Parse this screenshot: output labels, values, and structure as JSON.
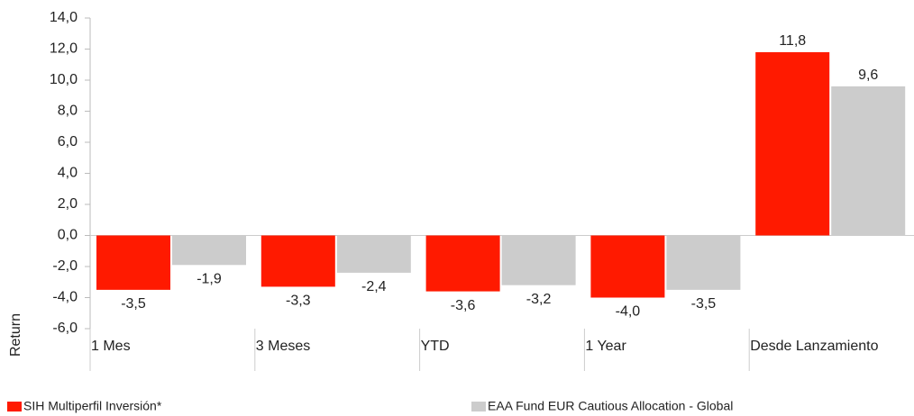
{
  "chart_data": {
    "type": "bar",
    "y_label": "Return",
    "categories": [
      "1 Mes",
      "3 Meses",
      "YTD",
      "1 Year",
      "Desde Lanzamiento"
    ],
    "series": [
      {
        "name": "SIH Multiperfil Inversión*",
        "color": "#ff1a00",
        "values": [
          -3.5,
          -3.3,
          -3.6,
          -4.0,
          11.8
        ],
        "value_labels": [
          "-3,5",
          "-3,3",
          "-3,6",
          "-4,0",
          "11,8"
        ]
      },
      {
        "name": "EAA Fund EUR Cautious Allocation - Global",
        "color": "#cccccc",
        "values": [
          -1.9,
          -2.4,
          -3.2,
          -3.5,
          9.6
        ],
        "value_labels": [
          "-1,9",
          "-2,4",
          "-3,2",
          "-3,5",
          "9,6"
        ]
      }
    ],
    "ylim": [
      -6,
      14
    ],
    "yticks": [
      {
        "value": 14,
        "label": "14,0"
      },
      {
        "value": 12,
        "label": "12,0"
      },
      {
        "value": 10,
        "label": "10,0"
      },
      {
        "value": 8,
        "label": "8,0"
      },
      {
        "value": 6,
        "label": "6,0"
      },
      {
        "value": 4,
        "label": "4,0"
      },
      {
        "value": 2,
        "label": "2,0"
      },
      {
        "value": 0,
        "label": "0,0"
      },
      {
        "value": -2,
        "label": "-2,0"
      },
      {
        "value": -4,
        "label": "-4,0"
      },
      {
        "value": -6,
        "label": "-6,0"
      }
    ]
  }
}
